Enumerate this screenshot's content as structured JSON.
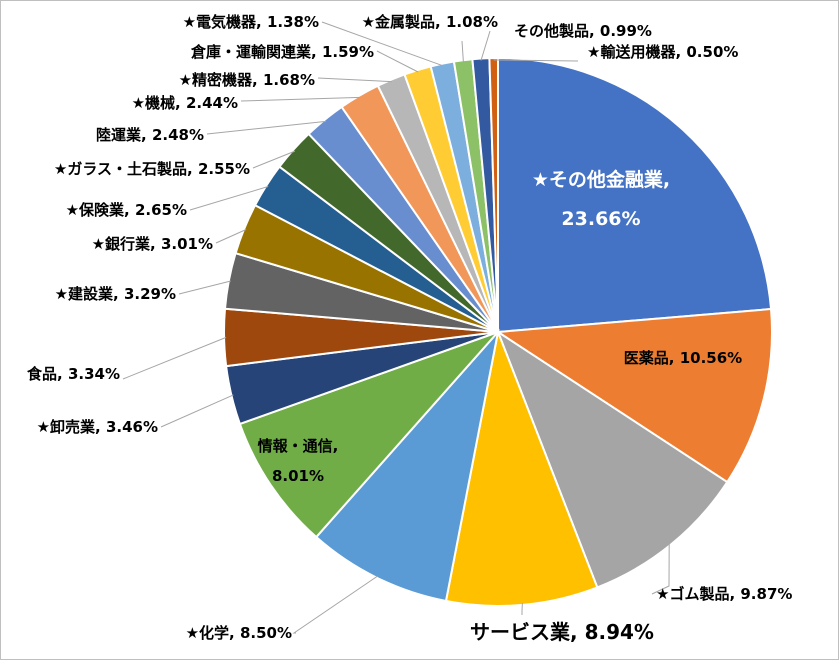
{
  "chart_data": {
    "type": "pie",
    "title": "",
    "start_angle_deg": 0,
    "direction": "clockwise",
    "slices": [
      {
        "label": "★その他金融業",
        "value": 23.66,
        "text": "23.66%",
        "color": "#4472c4"
      },
      {
        "label": "医薬品",
        "value": 10.56,
        "text": "10.56%",
        "color": "#ed7d31"
      },
      {
        "label": "★ゴム製品",
        "value": 9.87,
        "text": "9.87%",
        "color": "#a5a5a5"
      },
      {
        "label": "サービス業",
        "value": 8.94,
        "text": "8.94%",
        "color": "#ffc000"
      },
      {
        "label": "★化学",
        "value": 8.5,
        "text": "8.50%",
        "color": "#5b9bd5"
      },
      {
        "label": "情報・通信",
        "value": 8.01,
        "text": "8.01%",
        "color": "#70ad47"
      },
      {
        "label": "★卸売業",
        "value": 3.46,
        "text": "3.46%",
        "color": "#264478"
      },
      {
        "label": "食品",
        "value": 3.34,
        "text": "3.34%",
        "color": "#9e480e"
      },
      {
        "label": "★建設業",
        "value": 3.29,
        "text": "3.29%",
        "color": "#636363"
      },
      {
        "label": "★銀行業",
        "value": 3.01,
        "text": "3.01%",
        "color": "#997300"
      },
      {
        "label": "★保険業",
        "value": 2.65,
        "text": "2.65%",
        "color": "#255e91"
      },
      {
        "label": "★ガラス・土石製品",
        "value": 2.55,
        "text": "2.55%",
        "color": "#43682b"
      },
      {
        "label": "陸運業",
        "value": 2.48,
        "text": "2.48%",
        "color": "#698ed0"
      },
      {
        "label": "★機械",
        "value": 2.44,
        "text": "2.44%",
        "color": "#f1975a"
      },
      {
        "label": "★精密機器",
        "value": 1.68,
        "text": "1.68%",
        "color": "#b7b7b7"
      },
      {
        "label": "倉庫・運輸関連業",
        "value": 1.59,
        "text": "1.59%",
        "color": "#ffcd33"
      },
      {
        "label": "★電気機器",
        "value": 1.38,
        "text": "1.38%",
        "color": "#7cafdd"
      },
      {
        "label": "★金属製品",
        "value": 1.08,
        "text": "1.08%",
        "color": "#8cc168"
      },
      {
        "label": "その他製品",
        "value": 0.99,
        "text": "0.99%",
        "color": "#335aa1"
      },
      {
        "label": "★輸送用機器",
        "value": 0.5,
        "text": "0.50%",
        "color": "#d26012"
      }
    ]
  }
}
